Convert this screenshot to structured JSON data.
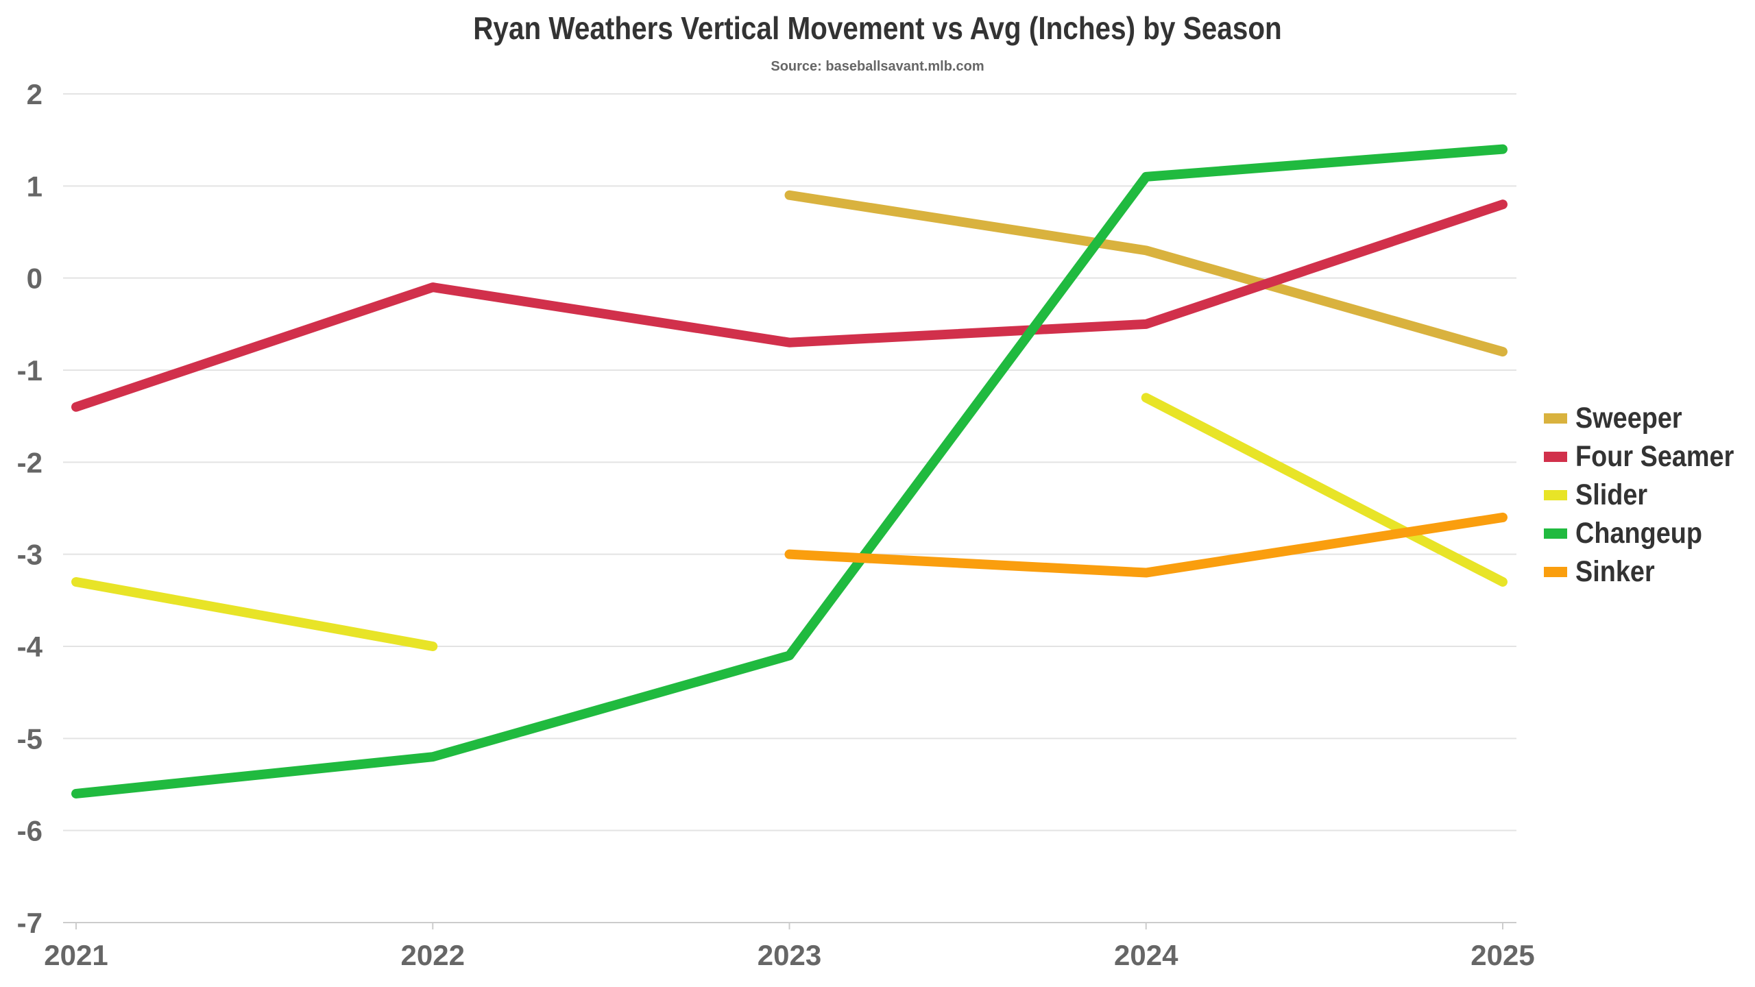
{
  "chart_data": {
    "type": "line",
    "title": "Ryan Weathers Vertical Movement vs Avg (Inches) by Season",
    "subtitle": "Source: baseballsavant.mlb.com",
    "xlabel": "",
    "ylabel": "",
    "categories": [
      "2021",
      "2022",
      "2023",
      "2024",
      "2025"
    ],
    "ylim": [
      -7,
      2
    ],
    "yticks": [
      "2",
      "1",
      "0",
      "-1",
      "-2",
      "-3",
      "-4",
      "-5",
      "-6",
      "-7"
    ],
    "grid": true,
    "legend_position": "right",
    "series": [
      {
        "name": "Sweeper",
        "color": "#D9B23E",
        "values": [
          null,
          null,
          0.9,
          0.3,
          -0.8
        ]
      },
      {
        "name": "Four Seamer",
        "color": "#D1304B",
        "values": [
          -1.4,
          -0.1,
          -0.7,
          -0.5,
          0.8
        ]
      },
      {
        "name": "Slider",
        "color": "#E8E427",
        "values": [
          -3.3,
          -4.0,
          null,
          -1.3,
          -3.3
        ]
      },
      {
        "name": "Changeup",
        "color": "#20BA3F",
        "values": [
          -5.6,
          -5.2,
          -4.1,
          1.1,
          1.4
        ]
      },
      {
        "name": "Sinker",
        "color": "#FA9E0E",
        "values": [
          null,
          null,
          -3.0,
          -3.2,
          -2.6
        ]
      }
    ]
  }
}
